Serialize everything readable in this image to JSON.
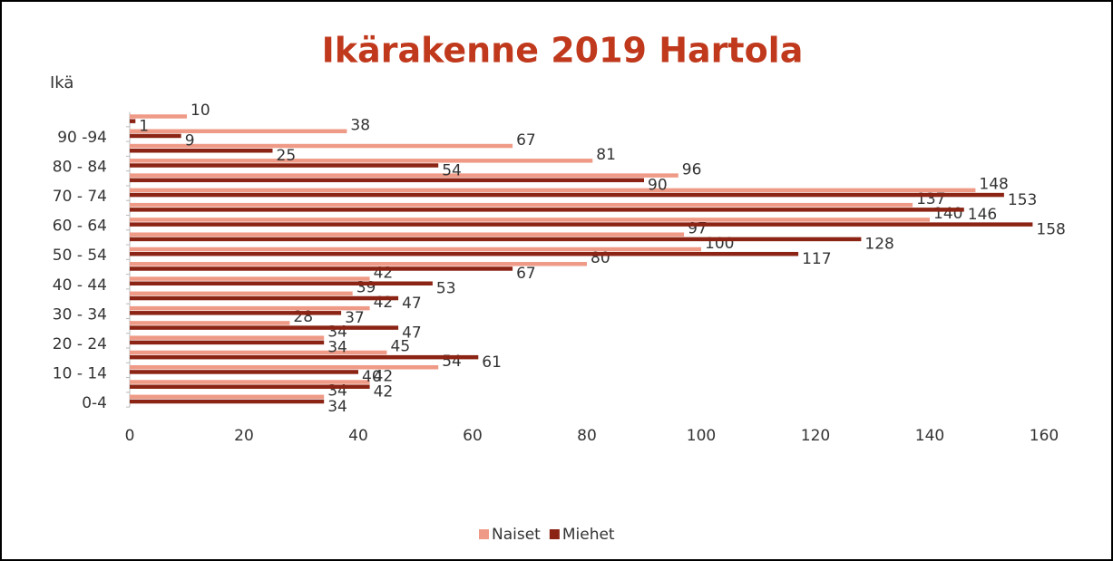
{
  "chart_data": {
    "type": "bar",
    "orientation": "horizontal",
    "title": "Ikärakenne 2019 Hartola",
    "y_label": "Ikä",
    "categories": [
      "0-4",
      null,
      "10 - 14",
      null,
      "20 - 24",
      null,
      "30 - 34",
      null,
      "40 - 44",
      null,
      "50 - 54",
      null,
      "60 - 64",
      null,
      "70 - 74",
      null,
      "80 - 84",
      null,
      "90 -94",
      null
    ],
    "series": [
      {
        "name": "Naiset",
        "color": "#ef9a86",
        "values": [
          34,
          42,
          54,
          45,
          34,
          28,
          42,
          39,
          42,
          80,
          100,
          97,
          140,
          137,
          148,
          96,
          81,
          67,
          38,
          10
        ]
      },
      {
        "name": "Miehet",
        "color": "#8b2414",
        "values": [
          34,
          42,
          40,
          61,
          34,
          47,
          37,
          47,
          53,
          67,
          117,
          128,
          158,
          146,
          153,
          90,
          54,
          25,
          9,
          1
        ]
      }
    ],
    "xlim": [
      0,
      160
    ],
    "xticks": [
      0,
      20,
      40,
      60,
      80,
      100,
      120,
      140,
      160
    ],
    "grid": false,
    "legend": "bottom"
  }
}
